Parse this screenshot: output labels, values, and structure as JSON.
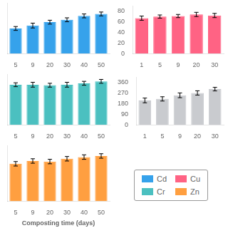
{
  "chart_data": [
    {
      "type": "bar",
      "categories": [
        "5",
        "9",
        "20",
        "30",
        "40",
        "50"
      ],
      "series": [
        {
          "name": "Cd",
          "color": "#36a2eb",
          "values": [
            0.52,
            0.58,
            0.65,
            0.7,
            0.78,
            0.82
          ],
          "errors": [
            0.04,
            0.05,
            0.04,
            0.04,
            0.04,
            0.04
          ]
        }
      ],
      "ylim": [
        0,
        1.05
      ],
      "tick_labels": "x",
      "grid": false
    },
    {
      "type": "bar",
      "categories": [
        "1",
        "5",
        "9",
        "20",
        "30"
      ],
      "series": [
        {
          "name": "Cu",
          "color": "#ff6384",
          "values": [
            67,
            70,
            71,
            74,
            72
          ],
          "errors": [
            4,
            3,
            3,
            4,
            4
          ]
        }
      ],
      "ylim": [
        0,
        90
      ],
      "yticks": [
        0,
        20,
        40,
        60,
        80
      ],
      "grid": false
    },
    {
      "type": "bar",
      "categories": [
        "5",
        "9",
        "20",
        "30",
        "40",
        "50"
      ],
      "series": [
        {
          "name": "Cr",
          "color": "#4bc0c0",
          "values": [
            0.83,
            0.83,
            0.82,
            0.83,
            0.86,
            0.9
          ],
          "errors": [
            0.04,
            0.05,
            0.04,
            0.05,
            0.04,
            0.04
          ]
        }
      ],
      "ylim": [
        0,
        1.05
      ],
      "tick_labels": "x",
      "grid": false
    },
    {
      "type": "bar",
      "categories": [
        "1",
        "5",
        "9",
        "20",
        "30"
      ],
      "color": "#c9cbcf",
      "values": [
        205,
        218,
        248,
        268,
        300
      ],
      "errors": [
        20,
        18,
        20,
        18,
        15
      ],
      "ylim": [
        0,
        400
      ],
      "yticks": [
        0,
        90,
        180,
        270,
        360
      ],
      "grid": false
    },
    {
      "type": "bar",
      "categories": [
        "5",
        "9",
        "20",
        "30",
        "40",
        "50"
      ],
      "series": [
        {
          "name": "Zn",
          "color": "#ff9f40",
          "values": [
            0.67,
            0.72,
            0.71,
            0.76,
            0.79,
            0.81
          ],
          "errors": [
            0.04,
            0.04,
            0.04,
            0.04,
            0.04,
            0.04
          ]
        }
      ],
      "ylim": [
        0,
        1.0
      ],
      "tick_labels": "x",
      "xlabel": "Composting time (days)",
      "grid": false
    }
  ]
}
